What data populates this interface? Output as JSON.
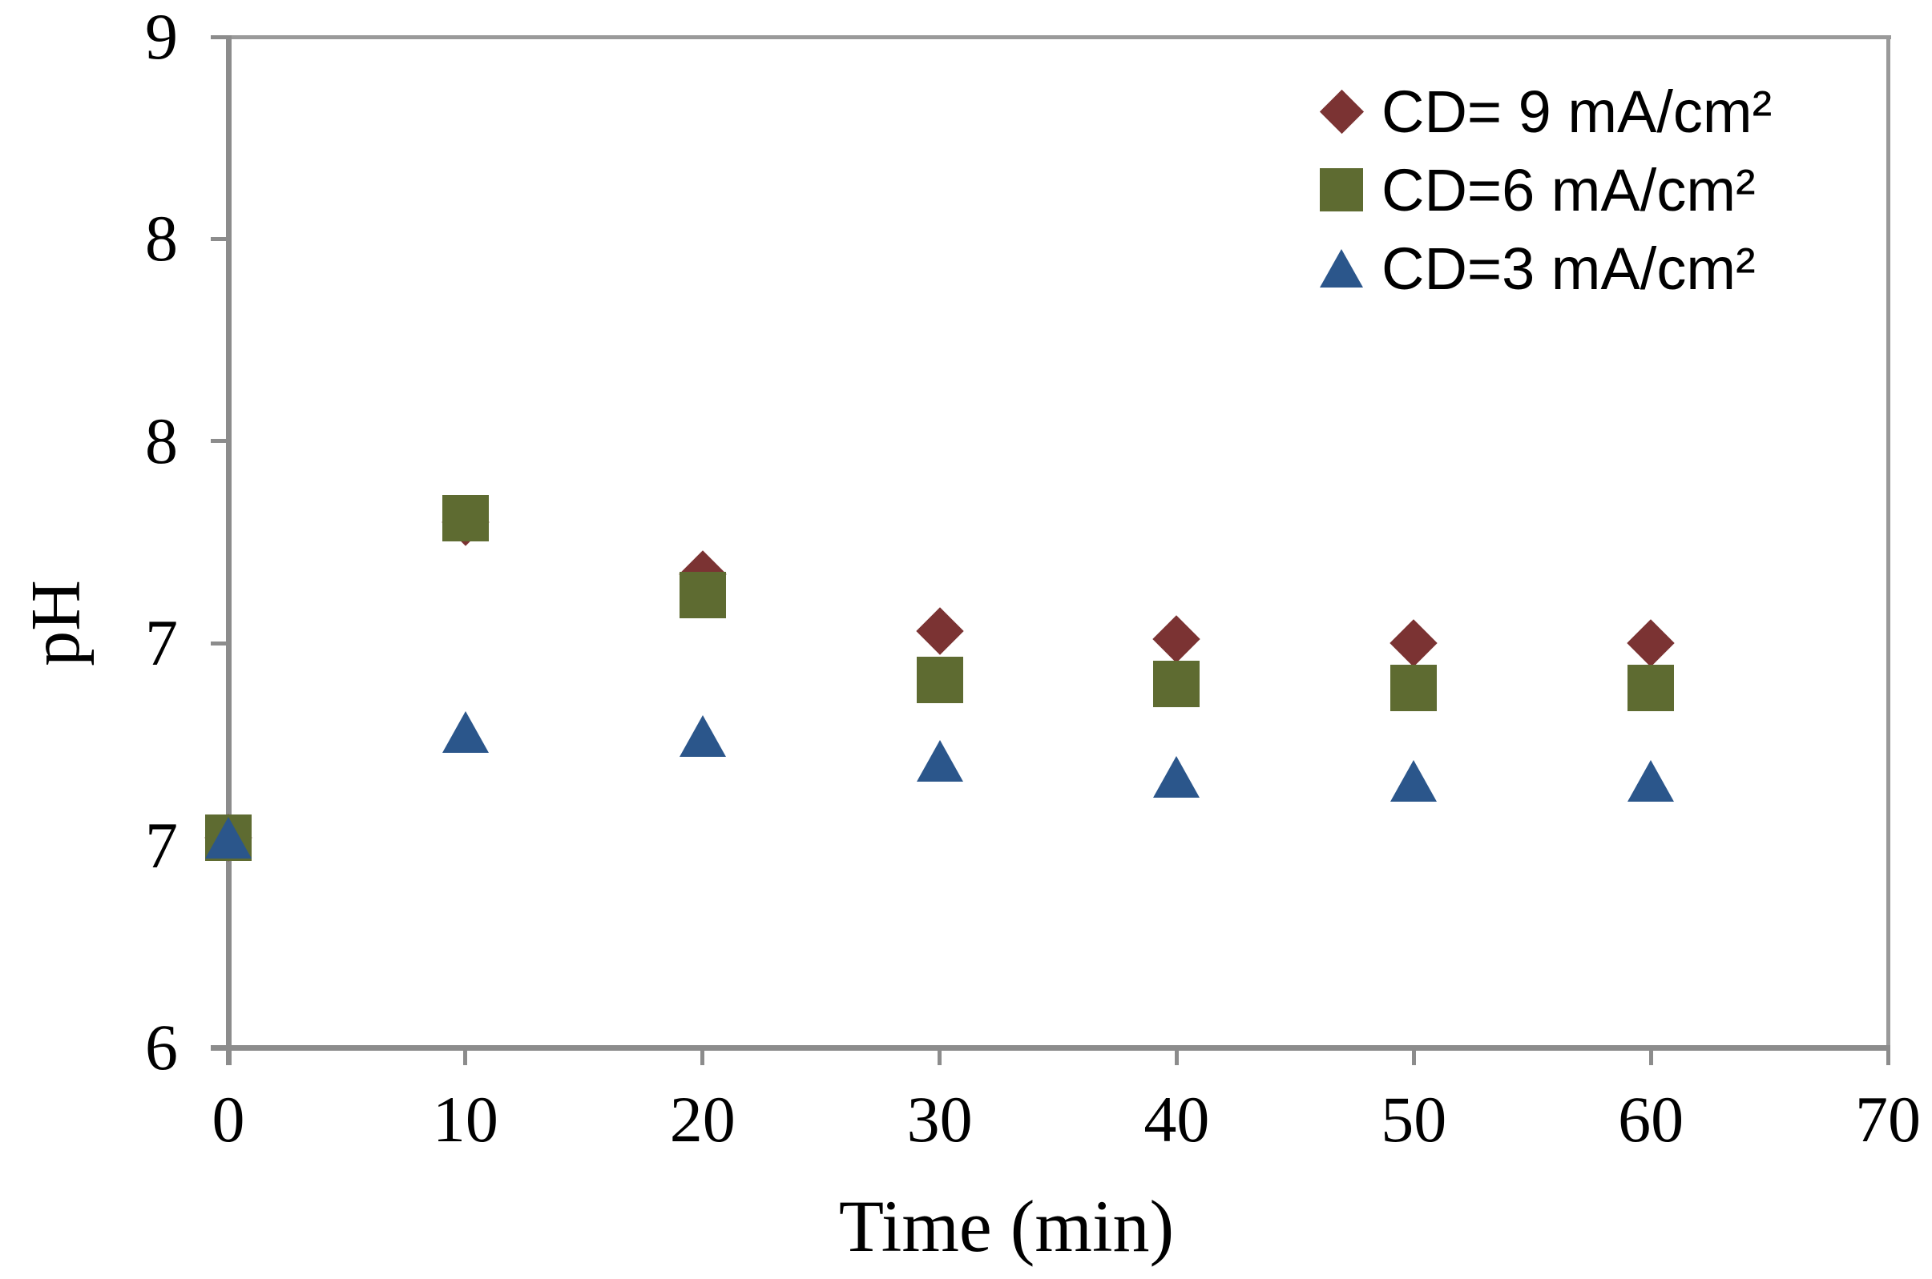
{
  "chart_data": {
    "type": "scatter",
    "title": "",
    "xlabel": "Time (min)",
    "ylabel": "pH",
    "x": [
      0,
      10,
      20,
      30,
      40,
      50,
      60
    ],
    "series": [
      {
        "name": "CD= 9 mA/cm²",
        "marker": "diamond",
        "color": "#7b3333",
        "values": [
          6.52,
          7.3,
          7.17,
          7.03,
          7.01,
          7.0,
          7.0
        ]
      },
      {
        "name": "CD=6 mA/cm²",
        "marker": "square",
        "color": "#5e6b31",
        "values": [
          6.52,
          7.31,
          7.12,
          6.91,
          6.9,
          6.89,
          6.89
        ]
      },
      {
        "name": "CD=3 mA/cm²",
        "marker": "triangle",
        "color": "#2b568b",
        "values": [
          6.52,
          6.78,
          6.77,
          6.71,
          6.67,
          6.66,
          6.66
        ]
      }
    ],
    "xlim": [
      0,
      70
    ],
    "ylim": [
      6,
      8.5
    ],
    "x_ticks": {
      "values": [
        0,
        10,
        20,
        30,
        40,
        50,
        60,
        70
      ],
      "labels": [
        "0",
        "10",
        "20",
        "30",
        "40",
        "50",
        "60",
        "70"
      ]
    },
    "y_ticks": {
      "values": [
        6,
        6.5,
        7,
        7.5,
        8,
        8.5
      ],
      "labels": [
        "6",
        "7",
        "7",
        "8",
        "8",
        "9"
      ]
    },
    "grid": false,
    "legend_position": "top-right",
    "axis_color": "#8c8c8c",
    "border_color": "#9a9a9a",
    "text_color": "#000000"
  }
}
